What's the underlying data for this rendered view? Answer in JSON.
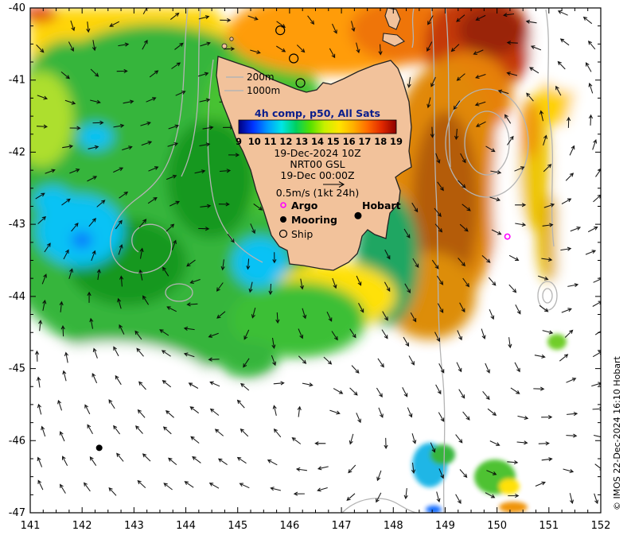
{
  "attribution": "© IMOS 22-Dec-2024 16:10 Hobart",
  "axes": {
    "x_ticks": [
      "141",
      "142",
      "143",
      "144",
      "145",
      "146",
      "147",
      "148",
      "149",
      "150",
      "151",
      "152"
    ],
    "y_ticks": [
      "-40",
      "-41",
      "-42",
      "-43",
      "-44",
      "-45",
      "-46",
      "-47"
    ],
    "x_range": [
      141,
      152
    ],
    "y_range": [
      -47,
      -40
    ]
  },
  "legend": {
    "depth_labels": [
      "200m",
      "1000m"
    ],
    "colorbar_title": "4h comp, p50, All Sats",
    "colorbar_ticks": [
      "9",
      "10",
      "11",
      "12",
      "13",
      "14",
      "15",
      "16",
      "17",
      "18",
      "19"
    ],
    "date_line": "19-Dec-2024 10Z",
    "product_line": "NRT00 GSL",
    "velocity_date_line": "19-Dec 00:00Z",
    "velocity_scale_line": "0.5m/s (1kt 24h)",
    "marker_labels": {
      "argo": "Argo",
      "mooring": "Mooring",
      "ship": "Ship"
    },
    "colors": {
      "argo": "#ff00ff",
      "mooring": "#000000",
      "ship_outline": "#000000"
    }
  },
  "city_label": {
    "name": "Hobart",
    "lon": 147.32,
    "lat": -42.88
  },
  "observations": {
    "argo": [
      {
        "lon": 150.2,
        "lat": -43.17
      }
    ],
    "mooring": [
      {
        "lon": 142.33,
        "lat": -46.1
      }
    ],
    "ship": [
      {
        "lon": 145.82,
        "lat": -40.31
      },
      {
        "lon": 146.08,
        "lat": -40.7
      },
      {
        "lon": 146.21,
        "lat": -41.04
      }
    ]
  },
  "colorbar_gradient": [
    "#00007f",
    "#0033ff",
    "#0099ff",
    "#00e6e6",
    "#00d060",
    "#55e000",
    "#c8f000",
    "#ffe600",
    "#ffb000",
    "#ff6a00",
    "#e02800",
    "#8c0000"
  ]
}
